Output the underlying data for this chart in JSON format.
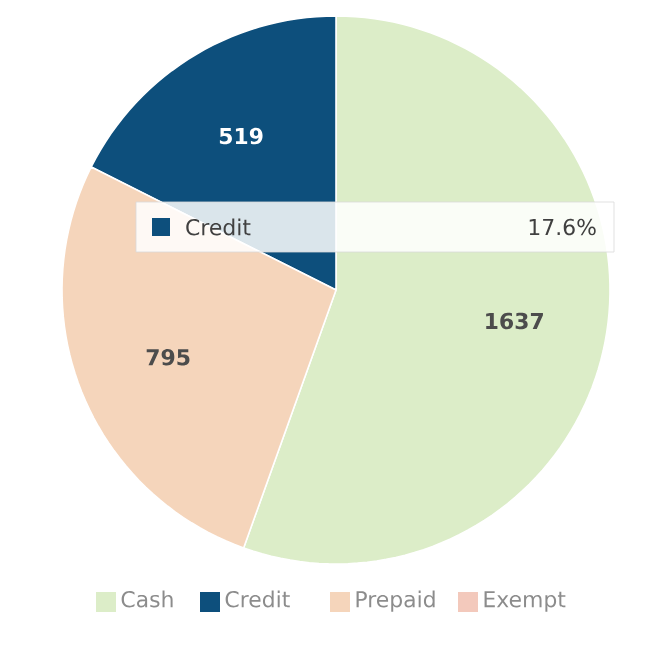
{
  "chart_data": {
    "type": "pie",
    "categories": [
      "Cash",
      "Credit",
      "Prepaid",
      "Exempt"
    ],
    "values": [
      1637,
      519,
      795,
      0
    ],
    "colors": [
      "#dcedc8",
      "#0d4f7c",
      "#f5d5bb",
      "#f3c9bc"
    ],
    "data_labels": true,
    "legend": "bottom",
    "annotations": [
      "17.6%"
    ]
  }
}
